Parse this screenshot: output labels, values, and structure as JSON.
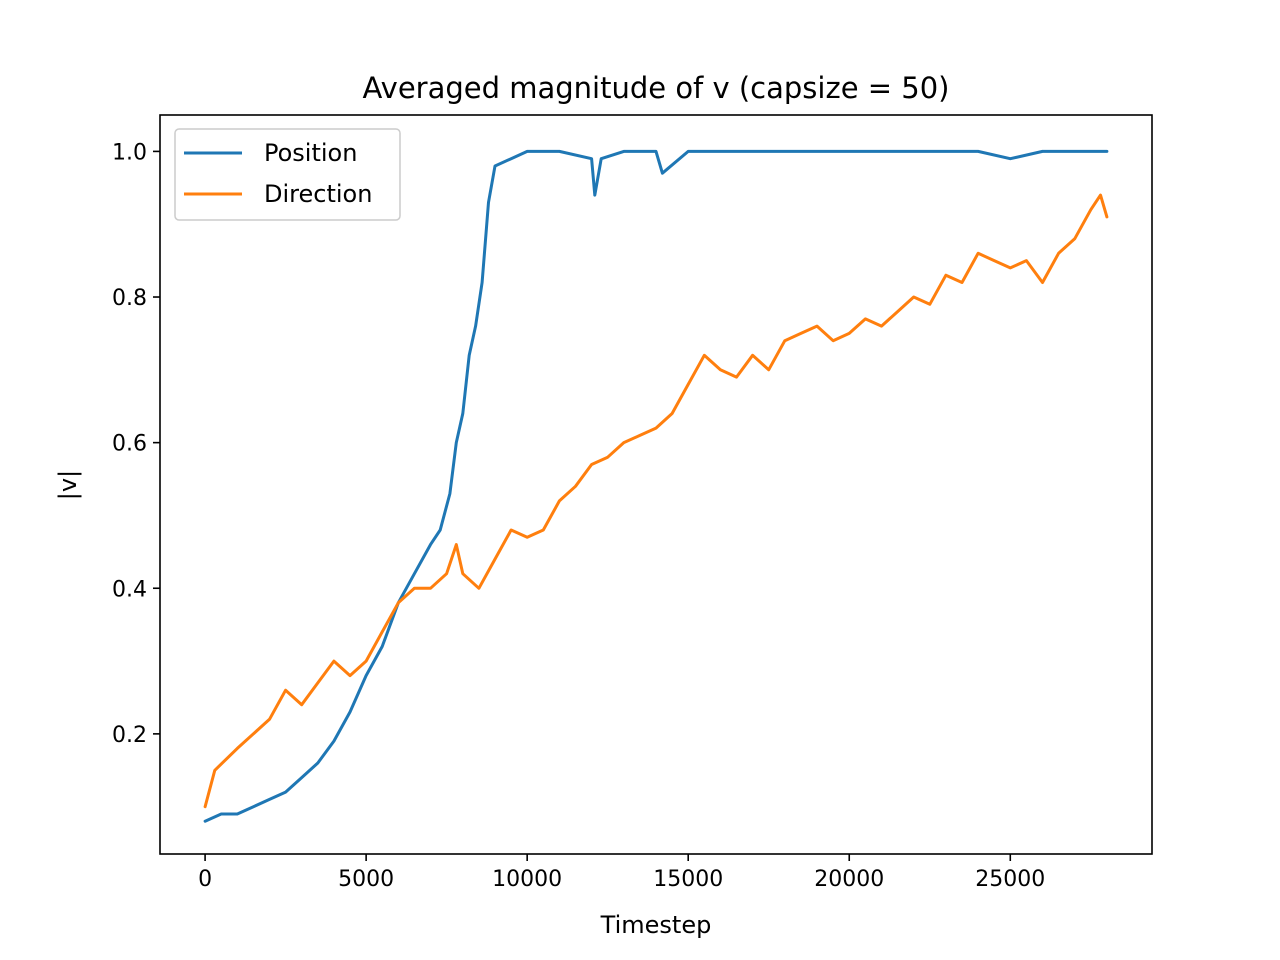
{
  "chart_data": {
    "type": "line",
    "title": "Averaged magnitude of v (capsize = 50)",
    "xlabel": "Timestep",
    "ylabel": "|v|",
    "xlim": [
      -1400,
      29400
    ],
    "ylim": [
      0.035,
      1.05
    ],
    "xticks": [
      0,
      5000,
      10000,
      15000,
      20000,
      25000
    ],
    "xtick_labels": [
      "0",
      "5000",
      "10000",
      "15000",
      "20000",
      "25000"
    ],
    "yticks": [
      0.2,
      0.4,
      0.6,
      0.8,
      1.0
    ],
    "ytick_labels": [
      "0.2",
      "0.4",
      "0.6",
      "0.8",
      "1.0"
    ],
    "grid": false,
    "legend_position": "top-left",
    "series": [
      {
        "name": "Position",
        "color": "#1f77b4",
        "x": [
          0,
          500,
          1000,
          1500,
          2000,
          2500,
          3000,
          3500,
          4000,
          4500,
          5000,
          5500,
          6000,
          6500,
          7000,
          7300,
          7600,
          7800,
          8000,
          8200,
          8400,
          8600,
          8800,
          9000,
          9500,
          10000,
          11000,
          12000,
          12100,
          12300,
          13000,
          14000,
          14200,
          15000,
          16000,
          18000,
          20000,
          22000,
          24000,
          25000,
          26000,
          28000
        ],
        "y": [
          0.08,
          0.09,
          0.09,
          0.1,
          0.11,
          0.12,
          0.14,
          0.16,
          0.19,
          0.23,
          0.28,
          0.32,
          0.38,
          0.42,
          0.46,
          0.48,
          0.53,
          0.6,
          0.64,
          0.72,
          0.76,
          0.82,
          0.93,
          0.98,
          0.99,
          1.0,
          1.0,
          0.99,
          0.94,
          0.99,
          1.0,
          1.0,
          0.97,
          1.0,
          1.0,
          1.0,
          1.0,
          1.0,
          1.0,
          0.99,
          1.0,
          1.0
        ]
      },
      {
        "name": "Direction",
        "color": "#ff7f0e",
        "x": [
          0,
          300,
          1000,
          2000,
          2500,
          3000,
          3500,
          4000,
          4500,
          5000,
          5500,
          6000,
          6500,
          7000,
          7500,
          7800,
          8000,
          8500,
          9000,
          9500,
          10000,
          10500,
          11000,
          11500,
          12000,
          12500,
          13000,
          13500,
          14000,
          14500,
          15000,
          15500,
          16000,
          16500,
          17000,
          17500,
          18000,
          18500,
          19000,
          19500,
          20000,
          20500,
          21000,
          21500,
          22000,
          22500,
          23000,
          23500,
          24000,
          24500,
          25000,
          25500,
          26000,
          26500,
          27000,
          27500,
          27800,
          28000
        ],
        "y": [
          0.1,
          0.15,
          0.18,
          0.22,
          0.26,
          0.24,
          0.27,
          0.3,
          0.28,
          0.3,
          0.34,
          0.38,
          0.4,
          0.4,
          0.42,
          0.46,
          0.42,
          0.4,
          0.44,
          0.48,
          0.47,
          0.48,
          0.52,
          0.54,
          0.57,
          0.58,
          0.6,
          0.61,
          0.62,
          0.64,
          0.68,
          0.72,
          0.7,
          0.69,
          0.72,
          0.7,
          0.74,
          0.75,
          0.76,
          0.74,
          0.75,
          0.77,
          0.76,
          0.78,
          0.8,
          0.79,
          0.83,
          0.82,
          0.86,
          0.85,
          0.84,
          0.85,
          0.82,
          0.86,
          0.88,
          0.92,
          0.94,
          0.91
        ]
      }
    ]
  }
}
